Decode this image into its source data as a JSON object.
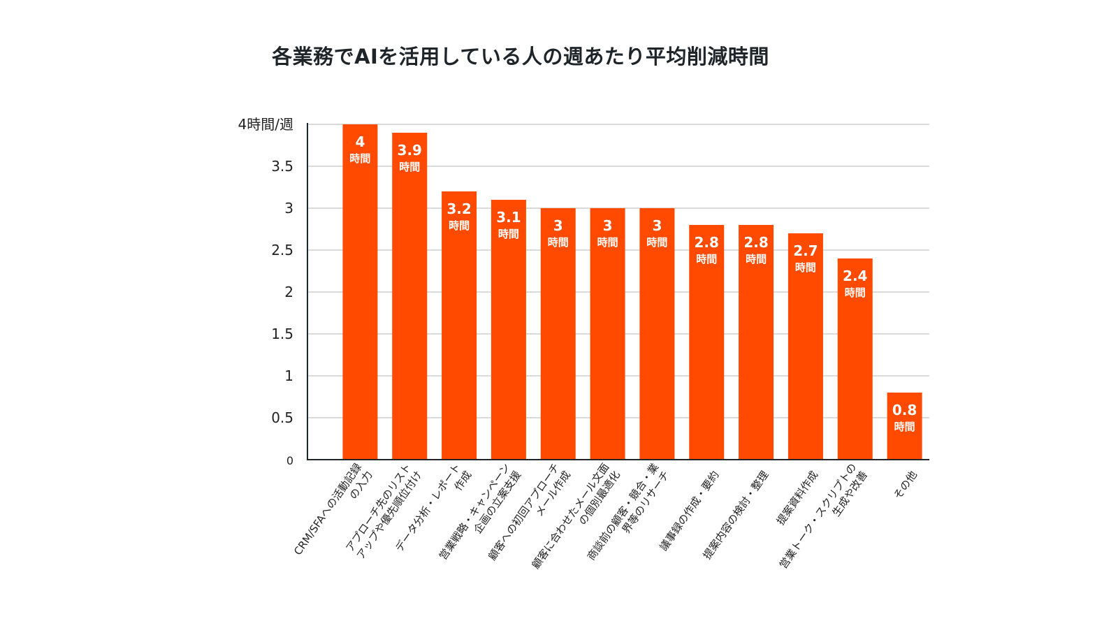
{
  "chart_data": {
    "type": "bar",
    "title": "各業務でAIを活用している人の週あたり平均削減時間",
    "unit_label": "時間",
    "y_top_label": "4時間/週",
    "ylim": [
      0,
      4
    ],
    "yticks": [
      "0",
      "0.5",
      "1",
      "1.5",
      "2",
      "2.5",
      "3",
      "3.5",
      "4時間/週"
    ],
    "bar_color": "#ff4a00",
    "grid": true,
    "categories": [
      [
        "CRM/SFAへの活動記録",
        "の入力"
      ],
      [
        "アプローチ先のリスト",
        "アップや優先順位付け"
      ],
      [
        "データ分析・レポート",
        "作成"
      ],
      [
        "営業戦略・キャンペーン",
        "企画の立案支援"
      ],
      [
        "顧客への初回アプローチ",
        "メール作成"
      ],
      [
        "顧客に合わせたメール文面",
        "の個別最適化"
      ],
      [
        "商談前の顧客・競合・業",
        "界等のリサーチ"
      ],
      [
        "議事録の作成・要約"
      ],
      [
        "提案内容の検討・整理"
      ],
      [
        "提案資料作成"
      ],
      [
        "営業トーク・スクリプトの",
        "生成や改善"
      ],
      [
        "その他"
      ]
    ],
    "values": [
      4,
      3.9,
      3.2,
      3.1,
      3,
      3,
      3,
      2.8,
      2.8,
      2.7,
      2.4,
      0.8
    ],
    "value_labels": [
      "4",
      "3.9",
      "3.2",
      "3.1",
      "3",
      "3",
      "3",
      "2.8",
      "2.8",
      "2.7",
      "2.4",
      "0.8"
    ]
  }
}
